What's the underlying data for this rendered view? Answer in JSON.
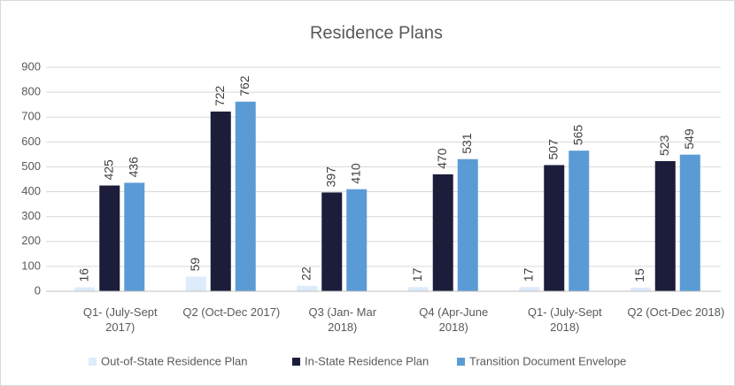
{
  "chart_data": {
    "type": "bar",
    "title": "Residence Plans",
    "categories": [
      "Q1- (July-Sept 2017)",
      "Q2 (Oct-Dec 2017)",
      "Q3 (Jan- Mar 2018)",
      "Q4 (Apr-June 2018)",
      "Q1- (July-Sept 2018)",
      "Q2 (Oct-Dec 2018)"
    ],
    "series": [
      {
        "name": "Out-of-State Residence Plan",
        "color": "#deebfb",
        "values": [
          16,
          59,
          22,
          17,
          17,
          15
        ]
      },
      {
        "name": "In-State Residence Plan",
        "color": "#1b1d3a",
        "values": [
          425,
          722,
          397,
          470,
          507,
          523
        ]
      },
      {
        "name": "Transition Document Envelope",
        "color": "#5b9bd5",
        "values": [
          436,
          762,
          410,
          531,
          565,
          549
        ]
      }
    ],
    "ylim": [
      0,
      900
    ],
    "yticks": [
      0,
      100,
      200,
      300,
      400,
      500,
      600,
      700,
      800,
      900
    ],
    "grid": true,
    "legend": "bottom"
  }
}
